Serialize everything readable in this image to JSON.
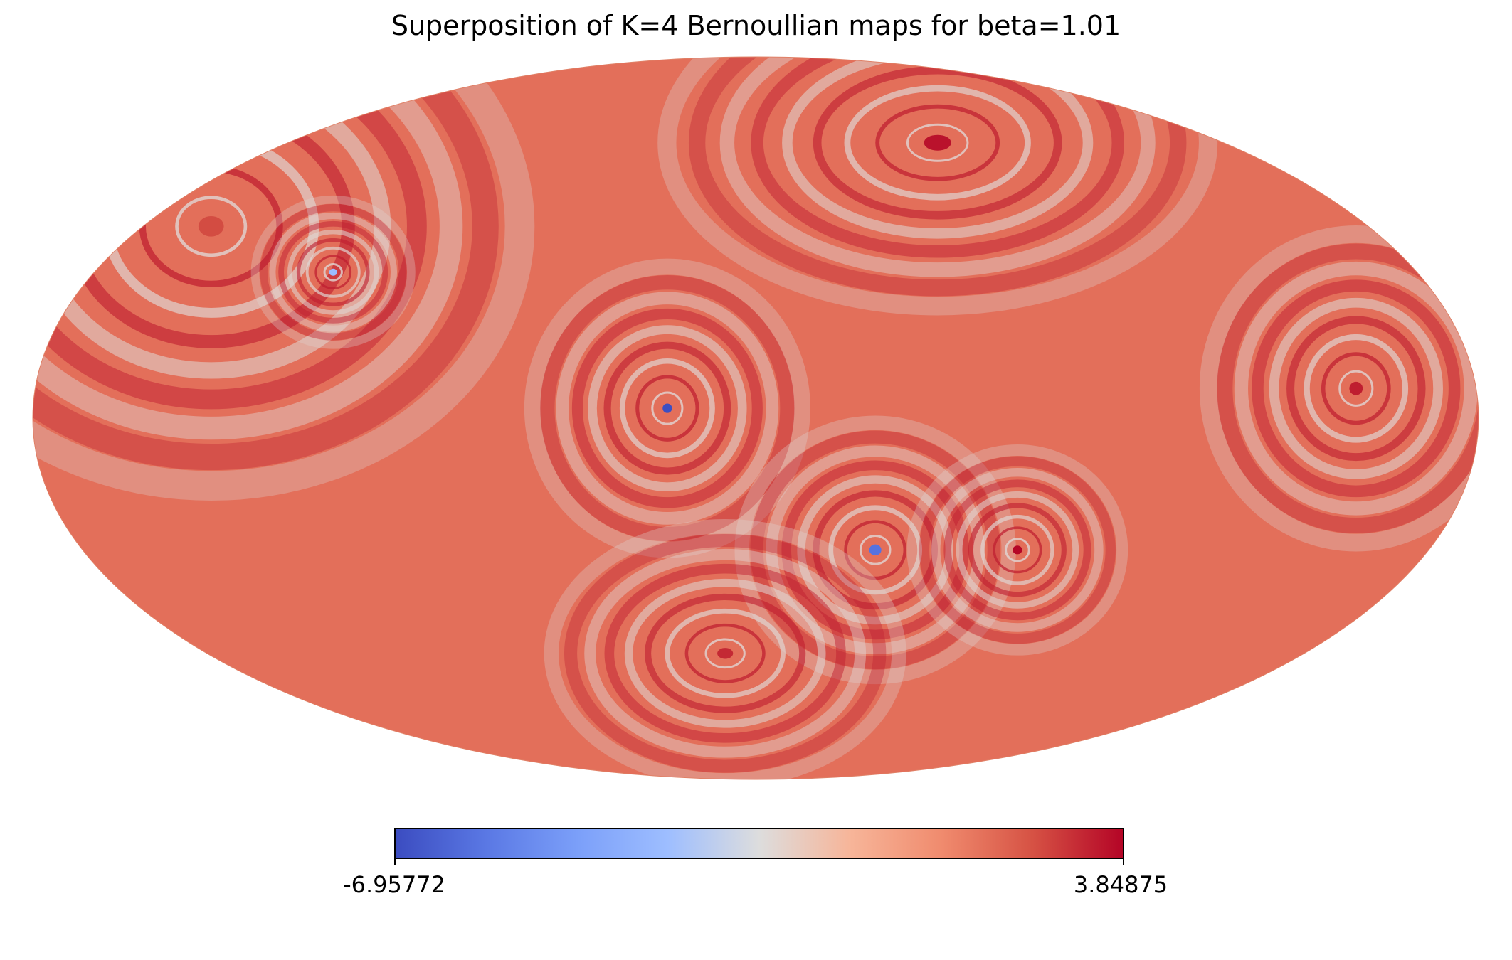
{
  "chart_data": {
    "type": "heatmap",
    "projection": "mollweide",
    "title": "Superposition of K=4 Bernoullian maps for beta=1.01",
    "K": 4,
    "beta": 1.01,
    "colormap": "coolwarm",
    "colorbar": {
      "min": -6.95772,
      "max": 3.84875,
      "min_label": "-6.95772",
      "max_label": "3.84875",
      "orientation": "horizontal",
      "placement": "bottom"
    },
    "background_value": 1.8,
    "ring_centers": [
      {
        "lon": 160,
        "lat": 40,
        "center_value": 2.6,
        "scale": 26,
        "strength": 1.1
      },
      {
        "lon": 115,
        "lat": 30,
        "center_value": -3.0,
        "scale": 8,
        "strength": 1.0
      },
      {
        "lon": -70,
        "lat": 60,
        "center_value": 3.6,
        "scale": 20,
        "strength": 0.9
      },
      {
        "lon": 22,
        "lat": 2,
        "center_value": -6.9,
        "scale": 12,
        "strength": 1.3
      },
      {
        "lon": -32,
        "lat": -27,
        "center_value": -5.8,
        "scale": 14,
        "strength": 1.0
      },
      {
        "lon": -70,
        "lat": -27,
        "center_value": 3.8,
        "scale": 11,
        "strength": 1.0
      },
      {
        "lon": 10,
        "lat": -50,
        "center_value": 3.2,
        "scale": 14,
        "strength": 1.0
      },
      {
        "lon": -150,
        "lat": 6,
        "center_value": 3.4,
        "scale": 17,
        "strength": 1.0
      }
    ],
    "colors": {
      "cmap_low": "#3b4cc0",
      "cmap_mid": "#dddddd",
      "cmap_high": "#b40426"
    }
  }
}
